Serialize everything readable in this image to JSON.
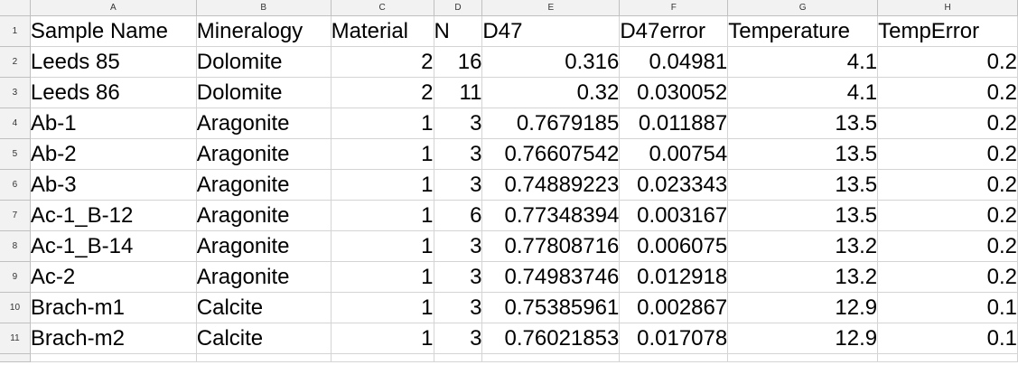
{
  "columns": [
    "A",
    "B",
    "C",
    "D",
    "E",
    "F",
    "G",
    "H"
  ],
  "rows": [
    {
      "num": "1",
      "cells": [
        "Sample Name",
        "Mineralogy",
        "Material",
        "N",
        "D47",
        "D47error",
        "Temperature",
        "TempError"
      ]
    },
    {
      "num": "2",
      "cells": [
        "Leeds 85",
        "Dolomite",
        "2",
        "16",
        "0.316",
        "0.04981",
        "4.1",
        "0.2"
      ]
    },
    {
      "num": "3",
      "cells": [
        "Leeds 86",
        "Dolomite",
        "2",
        "11",
        "0.32",
        "0.030052",
        "4.1",
        "0.2"
      ]
    },
    {
      "num": "4",
      "cells": [
        "Ab-1",
        "Aragonite",
        "1",
        "3",
        "0.7679185",
        "0.011887",
        "13.5",
        "0.2"
      ]
    },
    {
      "num": "5",
      "cells": [
        "Ab-2",
        "Aragonite",
        "1",
        "3",
        "0.76607542",
        "0.00754",
        "13.5",
        "0.2"
      ]
    },
    {
      "num": "6",
      "cells": [
        "Ab-3",
        "Aragonite",
        "1",
        "3",
        "0.74889223",
        "0.023343",
        "13.5",
        "0.2"
      ]
    },
    {
      "num": "7",
      "cells": [
        "Ac-1_B-12",
        "Aragonite",
        "1",
        "6",
        "0.77348394",
        "0.003167",
        "13.5",
        "0.2"
      ]
    },
    {
      "num": "8",
      "cells": [
        "Ac-1_B-14",
        "Aragonite",
        "1",
        "3",
        "0.77808716",
        "0.006075",
        "13.2",
        "0.2"
      ]
    },
    {
      "num": "9",
      "cells": [
        "Ac-2",
        "Aragonite",
        "1",
        "3",
        "0.74983746",
        "0.012918",
        "13.2",
        "0.2"
      ]
    },
    {
      "num": "10",
      "cells": [
        "Brach-m1",
        "Calcite",
        "1",
        "3",
        "0.75385961",
        "0.002867",
        "12.9",
        "0.1"
      ]
    },
    {
      "num": "11",
      "cells": [
        "Brach-m2",
        "Calcite",
        "1",
        "3",
        "0.76021853",
        "0.017078",
        "12.9",
        "0.1"
      ]
    }
  ],
  "colors": {
    "header_bg": "#f2f2f2",
    "grid_line": "#d4d4d4",
    "header_line": "#c0c0c0"
  }
}
